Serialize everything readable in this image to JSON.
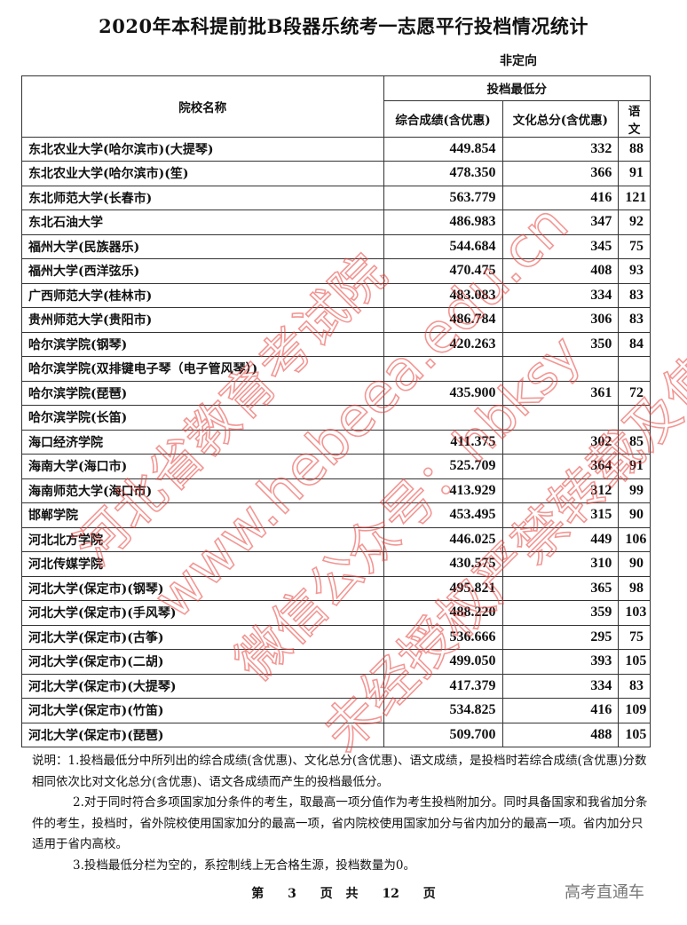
{
  "title": "2020年本科提前批B段器乐统考一志愿平行投档情况统计",
  "subtitle": "非定向",
  "table": {
    "header_name": "院校名称",
    "header_group": "投档最低分",
    "columns": [
      "综合成绩(含优惠)",
      "文化总分(含优惠)",
      "语文"
    ],
    "rows": [
      {
        "name": "东北农业大学(哈尔滨市)(大提琴)",
        "score": "449.854",
        "culture": "332",
        "chinese": "88"
      },
      {
        "name": "东北农业大学(哈尔滨市)(笙)",
        "score": "478.350",
        "culture": "366",
        "chinese": "91"
      },
      {
        "name": "东北师范大学(长春市)",
        "score": "563.779",
        "culture": "416",
        "chinese": "121"
      },
      {
        "name": "东北石油大学",
        "score": "486.983",
        "culture": "347",
        "chinese": "92"
      },
      {
        "name": "福州大学(民族器乐)",
        "score": "544.684",
        "culture": "345",
        "chinese": "75"
      },
      {
        "name": "福州大学(西洋弦乐)",
        "score": "470.475",
        "culture": "408",
        "chinese": "93"
      },
      {
        "name": "广西师范大学(桂林市)",
        "score": "483.083",
        "culture": "334",
        "chinese": "83"
      },
      {
        "name": "贵州师范大学(贵阳市)",
        "score": "486.784",
        "culture": "306",
        "chinese": "83"
      },
      {
        "name": "哈尔滨学院(钢琴)",
        "score": "420.263",
        "culture": "350",
        "chinese": "84"
      },
      {
        "name": "哈尔滨学院(双排键电子琴（电子管风琴）)",
        "score": "",
        "culture": "",
        "chinese": ""
      },
      {
        "name": "哈尔滨学院(琵琶)",
        "score": "435.900",
        "culture": "361",
        "chinese": "72"
      },
      {
        "name": "哈尔滨学院(长笛)",
        "score": "",
        "culture": "",
        "chinese": ""
      },
      {
        "name": "海口经济学院",
        "score": "411.375",
        "culture": "302",
        "chinese": "85"
      },
      {
        "name": "海南大学(海口市)",
        "score": "525.709",
        "culture": "364",
        "chinese": "91"
      },
      {
        "name": "海南师范大学(海口市)",
        "score": "413.929",
        "culture": "312",
        "chinese": "99"
      },
      {
        "name": "邯郸学院",
        "score": "453.495",
        "culture": "315",
        "chinese": "90"
      },
      {
        "name": "河北北方学院",
        "score": "446.025",
        "culture": "449",
        "chinese": "106"
      },
      {
        "name": "河北传媒学院",
        "score": "430.575",
        "culture": "310",
        "chinese": "90"
      },
      {
        "name": "河北大学(保定市)(钢琴)",
        "score": "495.821",
        "culture": "365",
        "chinese": "98"
      },
      {
        "name": "河北大学(保定市)(手风琴)",
        "score": "488.220",
        "culture": "359",
        "chinese": "103"
      },
      {
        "name": "河北大学(保定市)(古筝)",
        "score": "536.666",
        "culture": "295",
        "chinese": "75"
      },
      {
        "name": "河北大学(保定市)(二胡)",
        "score": "499.050",
        "culture": "393",
        "chinese": "105"
      },
      {
        "name": "河北大学(保定市)(大提琴)",
        "score": "417.379",
        "culture": "334",
        "chinese": "83"
      },
      {
        "name": "河北大学(保定市)(竹笛)",
        "score": "534.825",
        "culture": "416",
        "chinese": "109"
      },
      {
        "name": "河北大学(保定市)(琵琶)",
        "score": "509.700",
        "culture": "488",
        "chinese": "105"
      }
    ]
  },
  "notes": [
    "说明：1.投档最低分中所列出的综合成绩(含优惠)、文化总分(含优惠)、语文成绩，是投档时若综合成绩(含优惠)分数相同依次比对文化总分(含优惠)、语文各成绩而产生的投档最低分。",
    "2.对于同时符合多项国家加分条件的考生，取最高一项分值作为考生投档附加分。同时具备国家和我省加分条件的考生，投档时，省外院校使用国家加分的最高一项，省内院校使用国家加分与省内加分的最高一项。省内加分只适用于省内高校。",
    "3.投档最低分栏为空的，系控制线上无合格生源，投档数量为0。"
  ],
  "footer": {
    "prefix": "第",
    "page": "3",
    "middle": "页 共",
    "total": "12",
    "suffix": "页"
  },
  "brand": "高考直通车",
  "watermark": {
    "color": "#e8413c",
    "lines": [
      "河北省教育考试院",
      "www.hebeea.edu.cn",
      "微信公众号：hbksy",
      "未经授权严禁转载及使用"
    ]
  }
}
